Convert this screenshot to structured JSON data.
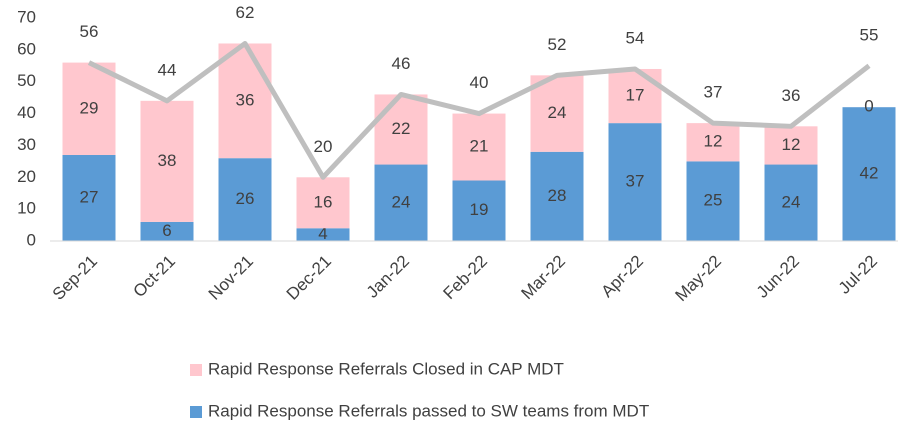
{
  "chart_data": {
    "type": "stacked_bar_line",
    "categories": [
      "Sep-21",
      "Oct-21",
      "Nov-21",
      "Dec-21",
      "Jan-22",
      "Feb-22",
      "Mar-22",
      "Apr-22",
      "May-22",
      "Jun-22",
      "Jul-22"
    ],
    "series": [
      {
        "name": "Rapid Response Referrals passed to SW teams from MDT",
        "type": "bar",
        "color": "#5b9bd5",
        "values": [
          27,
          6,
          26,
          4,
          24,
          19,
          28,
          37,
          25,
          24,
          42
        ]
      },
      {
        "name": "Rapid Response Referrals Closed in CAP MDT",
        "type": "bar",
        "color": "#ffc7ce",
        "values": [
          29,
          38,
          36,
          16,
          22,
          21,
          24,
          17,
          12,
          12,
          0
        ]
      },
      {
        "type": "line",
        "color": "#bfbfbf",
        "values": [
          56,
          44,
          62,
          20,
          46,
          40,
          52,
          54,
          37,
          36,
          55
        ]
      }
    ],
    "ylim": [
      0,
      70
    ],
    "yticks": [
      0,
      10,
      20,
      30,
      40,
      50,
      60,
      70
    ],
    "grid": false,
    "legend": "bottom"
  }
}
